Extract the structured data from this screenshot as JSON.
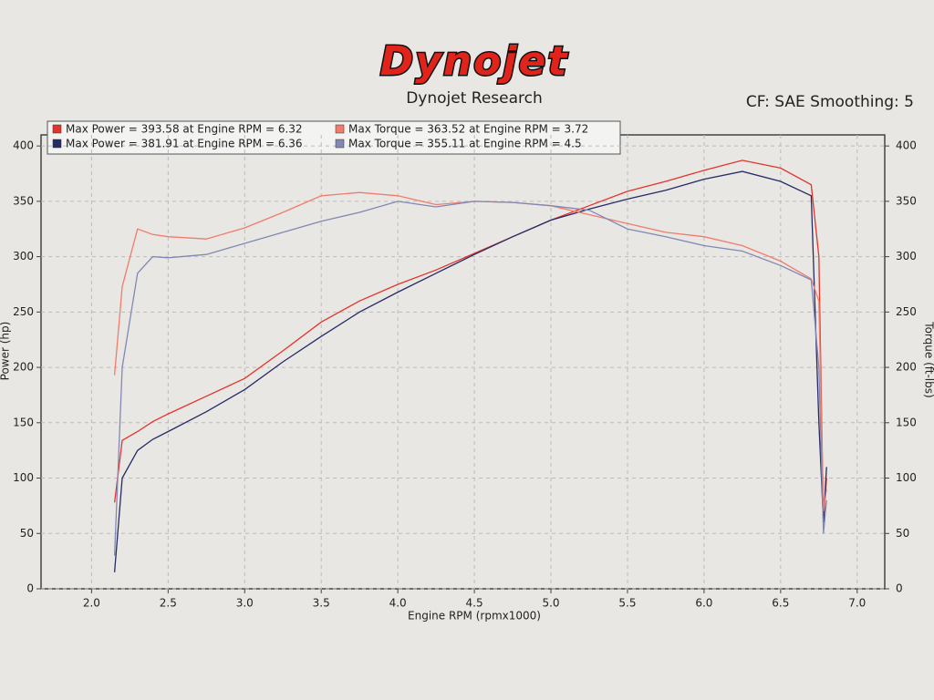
{
  "chart_data": {
    "type": "line",
    "title": "Dynojet",
    "subtitle": "Dynojet Research",
    "annotation": "CF: SAE Smoothing: 5",
    "x_label": "Engine RPM (rpmx1000)",
    "y_label": "Power (hp)",
    "y2_label": "Torque (ft-lbs)",
    "x": [
      2.15,
      2.2,
      2.3,
      2.4,
      2.5,
      2.75,
      3.0,
      3.25,
      3.5,
      3.75,
      4.0,
      4.25,
      4.5,
      4.75,
      5.0,
      5.25,
      5.5,
      5.75,
      6.0,
      6.25,
      6.5,
      6.7,
      6.75,
      6.78,
      6.8
    ],
    "xlim": [
      1.67,
      7.18
    ],
    "xticks": [
      {
        "value": 2,
        "label": "2.0"
      },
      2.5,
      {
        "value": 3,
        "label": "3.0"
      },
      3.5,
      {
        "value": 4,
        "label": "4.0"
      },
      4.5,
      {
        "value": 5,
        "label": "5.0"
      },
      5.5,
      {
        "value": 6,
        "label": "6.0"
      },
      6.5,
      {
        "value": 7,
        "label": "7.0"
      }
    ],
    "ylim": [
      0,
      410
    ],
    "yticks": [
      0,
      50,
      100,
      150,
      200,
      250,
      300,
      350,
      400
    ],
    "y2lim": [
      0,
      410
    ],
    "y2ticks": [
      0,
      50,
      100,
      150,
      200,
      250,
      300,
      350,
      400
    ],
    "grid": true,
    "series": [
      {
        "name": "Max Power = 393.58 at Engine RPM = 6.32",
        "color": "#e3342c",
        "values": [
          78,
          134,
          142,
          151,
          158,
          174,
          190,
          215,
          241,
          260,
          275,
          288,
          303,
          318,
          333,
          346,
          359,
          368,
          378,
          387,
          380,
          365,
          300,
          60,
          100
        ]
      },
      {
        "name": "Max Power = 381.91 at Engine RPM = 6.36",
        "color": "#262b66",
        "values": [
          15,
          100,
          125,
          135,
          142,
          160,
          180,
          205,
          228,
          250,
          268,
          285,
          302,
          318,
          333,
          343,
          352,
          360,
          370,
          377,
          368,
          355,
          150,
          60,
          110
        ]
      },
      {
        "name": "Max Torque = 363.52 at Engine RPM = 3.72",
        "color": "#f07c6c",
        "axis": "y2",
        "values": [
          193,
          273,
          325,
          320,
          318,
          316,
          326,
          340,
          355,
          358,
          355,
          347,
          350,
          349,
          346,
          338,
          330,
          322,
          318,
          310,
          296,
          280,
          260,
          70,
          90
        ]
      },
      {
        "name": "Max Torque = 355.11 at Engine RPM = 4.5",
        "color": "#8288b4",
        "axis": "y2",
        "values": [
          30,
          200,
          285,
          300,
          299,
          302,
          312,
          322,
          332,
          340,
          350,
          345,
          350,
          349,
          346,
          342,
          325,
          318,
          310,
          305,
          292,
          279,
          200,
          50,
          80
        ]
      }
    ]
  }
}
